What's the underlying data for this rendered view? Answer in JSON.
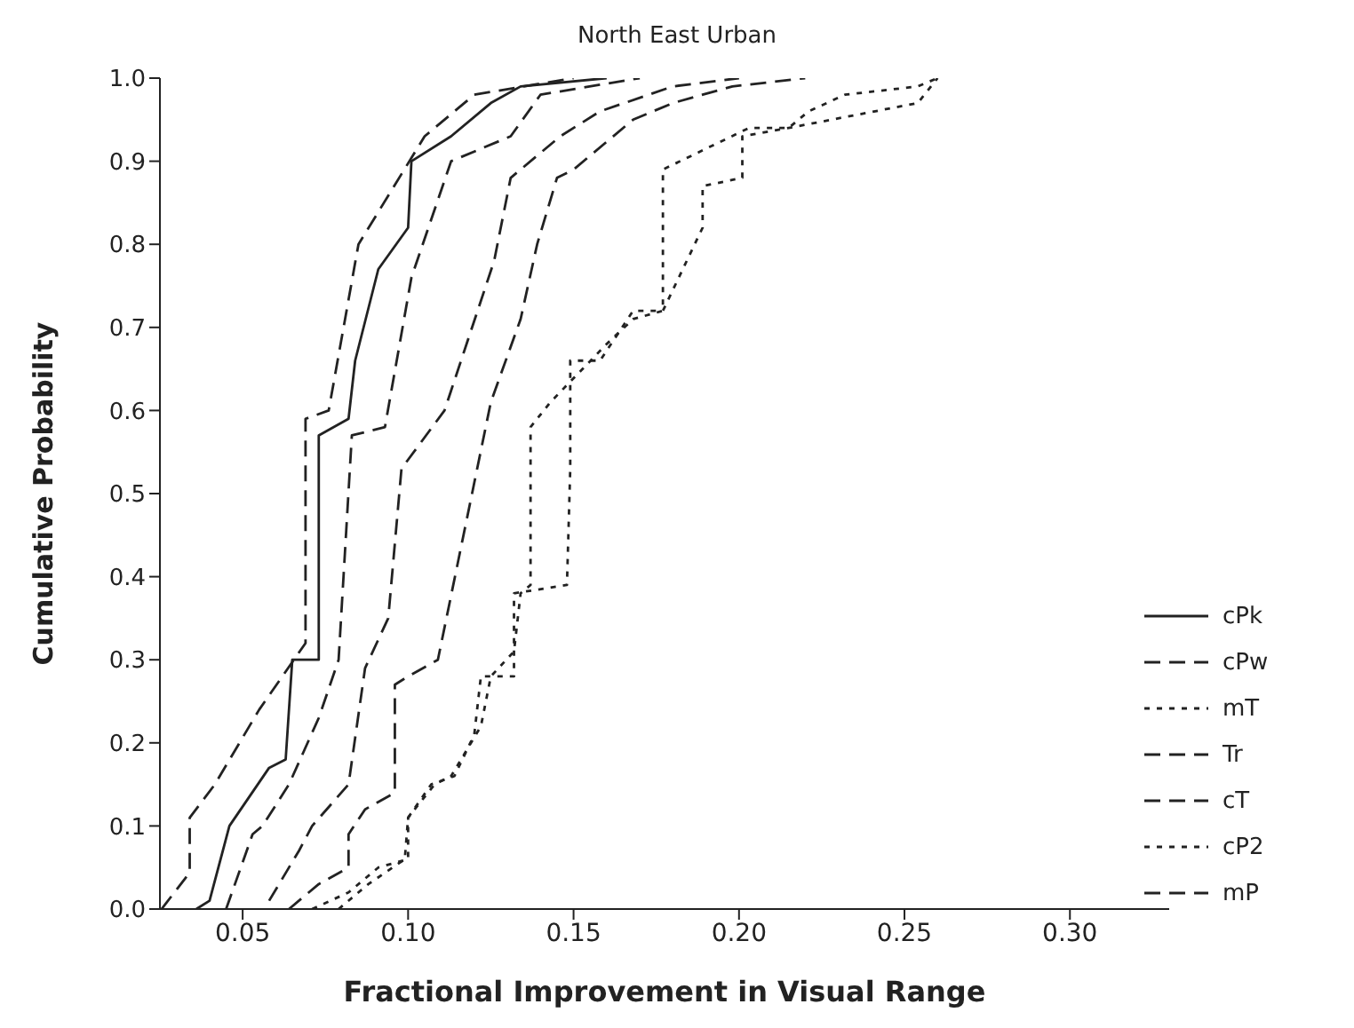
{
  "chart_data": {
    "type": "line",
    "title": "North East Urban",
    "xlabel": "Fractional Improvement in Visual Range",
    "ylabel": "Cumulative Probability",
    "xlim": [
      0.025,
      0.33
    ],
    "ylim": [
      0,
      1
    ],
    "xticks": [
      {
        "value": 0.05,
        "label": "0.05"
      },
      {
        "value": 0.1,
        "label": "0.10"
      },
      {
        "value": 0.15,
        "label": "0.15"
      },
      {
        "value": 0.2,
        "label": "0.20"
      },
      {
        "value": 0.25,
        "label": "0.25"
      },
      {
        "value": 0.3,
        "label": "0.30"
      }
    ],
    "yticks": [
      {
        "value": 0,
        "label": "0.0"
      },
      {
        "value": 0.1,
        "label": "0.1"
      },
      {
        "value": 0.2,
        "label": "0.2"
      },
      {
        "value": 0.3,
        "label": "0.3"
      },
      {
        "value": 0.4,
        "label": "0.4"
      },
      {
        "value": 0.5,
        "label": "0.5"
      },
      {
        "value": 0.6,
        "label": "0.6"
      },
      {
        "value": 0.7,
        "label": "0.7"
      },
      {
        "value": 0.8,
        "label": "0.8"
      },
      {
        "value": 0.9,
        "label": "0.9"
      },
      {
        "value": 1,
        "label": "1.0"
      }
    ],
    "grid": false,
    "legend": "right",
    "marker": "none",
    "series": [
      {
        "name": "cPk",
        "color": "#222222",
        "line_style": "solid",
        "x": [
          0.036,
          0.04,
          0.046,
          0.058,
          0.063,
          0.065,
          0.073,
          0.073,
          0.082,
          0.084,
          0.091,
          0.1,
          0.101,
          0.113,
          0.125,
          0.134,
          0.16
        ],
        "values": [
          0,
          0.01,
          0.1,
          0.17,
          0.18,
          0.3,
          0.3,
          0.57,
          0.59,
          0.66,
          0.77,
          0.82,
          0.9,
          0.93,
          0.97,
          0.99,
          1
        ]
      },
      {
        "name": "cPw",
        "color": "#222222",
        "line_style": "dashed",
        "x": [
          0.058,
          0.067,
          0.071,
          0.082,
          0.087,
          0.094,
          0.098,
          0.111,
          0.126,
          0.131,
          0.146,
          0.158,
          0.18,
          0.2
        ],
        "values": [
          0.01,
          0.07,
          0.1,
          0.15,
          0.29,
          0.35,
          0.53,
          0.6,
          0.78,
          0.88,
          0.93,
          0.96,
          0.99,
          1
        ]
      },
      {
        "name": "mT",
        "color": "#222222",
        "line_style": "dotted",
        "x": [
          0.071,
          0.082,
          0.091,
          0.1,
          0.1,
          0.108,
          0.113,
          0.122,
          0.125,
          0.132,
          0.134,
          0.137,
          0.137,
          0.143,
          0.16,
          0.168,
          0.177,
          0.177,
          0.203,
          0.215,
          0.221,
          0.232,
          0.254,
          0.26
        ],
        "values": [
          0,
          0.02,
          0.05,
          0.06,
          0.11,
          0.15,
          0.16,
          0.22,
          0.28,
          0.31,
          0.38,
          0.39,
          0.58,
          0.61,
          0.68,
          0.71,
          0.72,
          0.89,
          0.94,
          0.94,
          0.96,
          0.98,
          0.99,
          1
        ]
      },
      {
        "name": "Tr",
        "color": "#222222",
        "line_style": "dashed",
        "x": [
          0.045,
          0.053,
          0.056,
          0.064,
          0.073,
          0.079,
          0.083,
          0.093,
          0.101,
          0.113,
          0.131,
          0.14,
          0.17
        ],
        "values": [
          0,
          0.09,
          0.1,
          0.15,
          0.23,
          0.3,
          0.57,
          0.58,
          0.76,
          0.9,
          0.93,
          0.98,
          1
        ]
      },
      {
        "name": "cT",
        "color": "#222222",
        "line_style": "dashed",
        "x": [
          0.064,
          0.073,
          0.082,
          0.082,
          0.087,
          0.096,
          0.096,
          0.1,
          0.109,
          0.125,
          0.134,
          0.139,
          0.145,
          0.15,
          0.168,
          0.18,
          0.198,
          0.22
        ],
        "values": [
          0,
          0.03,
          0.05,
          0.09,
          0.12,
          0.14,
          0.27,
          0.28,
          0.3,
          0.61,
          0.71,
          0.8,
          0.88,
          0.89,
          0.95,
          0.97,
          0.99,
          1
        ]
      },
      {
        "name": "cP2",
        "color": "#222222",
        "line_style": "dotted",
        "x": [
          0.079,
          0.088,
          0.099,
          0.1,
          0.107,
          0.114,
          0.12,
          0.122,
          0.132,
          0.132,
          0.148,
          0.149,
          0.149,
          0.158,
          0.168,
          0.177,
          0.189,
          0.189,
          0.201,
          0.201,
          0.215,
          0.254,
          0.26
        ],
        "values": [
          0,
          0.03,
          0.06,
          0.11,
          0.15,
          0.16,
          0.21,
          0.28,
          0.28,
          0.38,
          0.39,
          0.53,
          0.66,
          0.66,
          0.72,
          0.72,
          0.82,
          0.87,
          0.88,
          0.93,
          0.94,
          0.97,
          1
        ]
      },
      {
        "name": "mP",
        "color": "#222222",
        "line_style": "dashed",
        "x": [
          0.0255,
          0.034,
          0.034,
          0.0416,
          0.055,
          0.069,
          0.069,
          0.076,
          0.085,
          0.105,
          0.12,
          0.15
        ],
        "values": [
          0,
          0.044,
          0.11,
          0.15,
          0.24,
          0.32,
          0.59,
          0.6,
          0.8,
          0.93,
          0.98,
          1
        ]
      }
    ]
  }
}
